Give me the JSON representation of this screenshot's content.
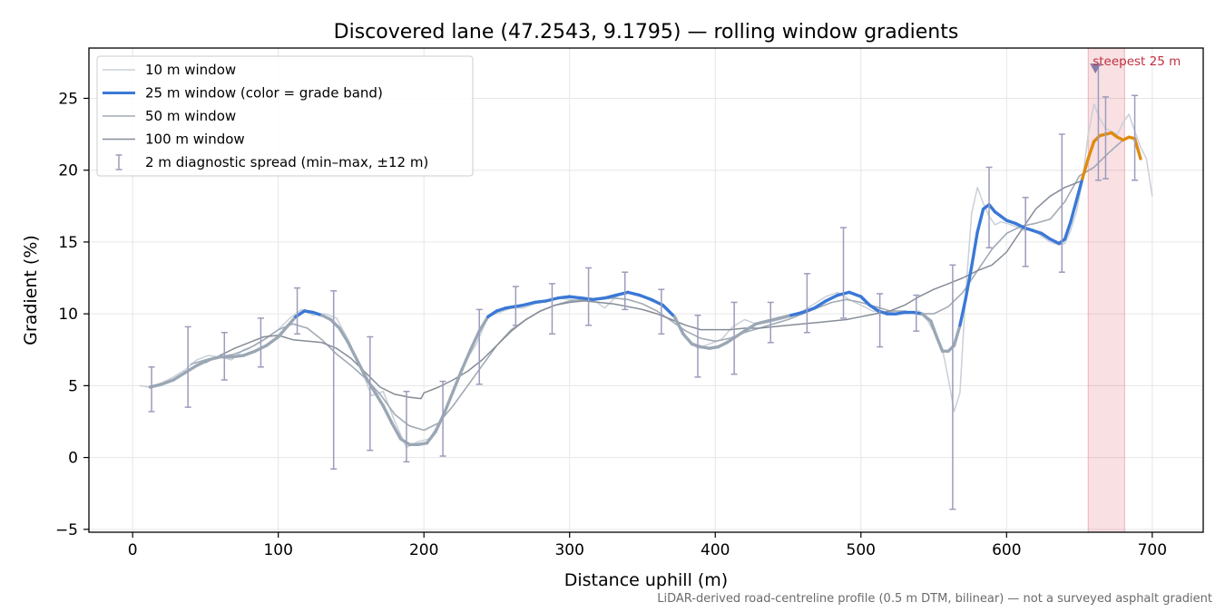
{
  "chart_data": {
    "type": "line",
    "title": "Discovered lane (47.2543, 9.1795) — rolling window gradients",
    "xlabel": "Distance uphill (m)",
    "ylabel": "Gradient (%)",
    "xlim": [
      -30,
      735
    ],
    "ylim": [
      -5.2,
      28.5
    ],
    "xticks": [
      0,
      100,
      200,
      300,
      400,
      500,
      600,
      700
    ],
    "yticks": [
      -5,
      0,
      5,
      10,
      15,
      20,
      25
    ],
    "xtick_labels": [
      "0",
      "100",
      "200",
      "300",
      "400",
      "500",
      "600",
      "700"
    ],
    "ytick_labels": [
      "−5",
      "0",
      "5",
      "10",
      "15",
      "20",
      "25"
    ],
    "grid": true,
    "legend_position": "top-left",
    "footnote": "LiDAR-derived road-centreline profile (0.5 m DTM, bilinear) — not a surveyed asphalt gradient",
    "annotation": {
      "text": "steepest 25 m",
      "x": 661,
      "y": 27.1
    },
    "highlight_span": {
      "x0": 656,
      "x1": 681,
      "color": "#d6404f"
    },
    "colors": {
      "band_low": "#9aa7b4",
      "band_mid": "#3a78d6",
      "band_high": "#e08a10",
      "w10": "#c9d0d8",
      "w50": "#a2aab4",
      "w100": "#858c97",
      "errorbar": "#9c9cbc",
      "marker": "#8a7aa8",
      "annotation": "#c0303f"
    },
    "band_thresholds": [
      10,
      20
    ],
    "legend": [
      {
        "label": "10 m window",
        "kind": "line",
        "color": "#c9d0d8",
        "width": 1.5
      },
      {
        "label": "25 m window (color = grade band)",
        "kind": "line",
        "color": "#3a78d6",
        "width": 3
      },
      {
        "label": "50 m window",
        "kind": "line",
        "color": "#a2aab4",
        "width": 1.5
      },
      {
        "label": "100 m window",
        "kind": "line",
        "color": "#858c97",
        "width": 1.5
      },
      {
        "label": "2 m diagnostic spread (min–max, ±12 m)",
        "kind": "errorbar",
        "color": "#9c9cbc"
      }
    ],
    "series": [
      {
        "name": "10 m window",
        "x": [
          5,
          12,
          20,
          28,
          36,
          44,
          52,
          60,
          68,
          76,
          84,
          92,
          100,
          108,
          116,
          124,
          132,
          140,
          148,
          156,
          164,
          172,
          180,
          188,
          196,
          204,
          212,
          220,
          228,
          236,
          244,
          252,
          260,
          268,
          276,
          284,
          292,
          300,
          308,
          316,
          324,
          332,
          340,
          348,
          356,
          364,
          372,
          380,
          388,
          396,
          404,
          412,
          420,
          428,
          436,
          444,
          452,
          460,
          468,
          476,
          484,
          492,
          500,
          508,
          516,
          524,
          532,
          540,
          546,
          552,
          556,
          560,
          564,
          568,
          572,
          576,
          580,
          584,
          588,
          592,
          596,
          600,
          606,
          612,
          618,
          624,
          630,
          636,
          640,
          644,
          648,
          652,
          656,
          660,
          664,
          668,
          672,
          676,
          680,
          684,
          688,
          692,
          696,
          700
        ],
        "y": [
          5.0,
          4.9,
          5.2,
          5.6,
          6.1,
          6.8,
          7.1,
          7.0,
          6.8,
          7.5,
          7.8,
          8.3,
          8.9,
          9.7,
          10.3,
          9.9,
          10.0,
          9.7,
          8.2,
          6.4,
          4.3,
          4.6,
          2.5,
          0.7,
          1.1,
          1.3,
          2.7,
          4.5,
          6.6,
          7.9,
          9.8,
          10.1,
          10.4,
          10.4,
          10.7,
          10.9,
          11.1,
          11.0,
          10.9,
          11.0,
          10.4,
          11.2,
          11.5,
          11.3,
          10.9,
          10.7,
          9.8,
          8.3,
          7.6,
          7.9,
          8.2,
          9.1,
          9.6,
          9.3,
          9.4,
          9.6,
          9.8,
          10.2,
          10.7,
          11.2,
          11.5,
          11.0,
          10.6,
          10.2,
          10.1,
          10.2,
          10.0,
          10.2,
          9.5,
          8.4,
          7.5,
          5.5,
          3.2,
          4.5,
          11.5,
          17.0,
          18.8,
          17.7,
          16.8,
          16.2,
          16.4,
          16.3,
          16.1,
          15.8,
          15.9,
          15.4,
          15.0,
          14.8,
          14.9,
          15.8,
          17.1,
          19.2,
          22.5,
          24.6,
          23.6,
          22.9,
          22.7,
          22.5,
          23.3,
          23.9,
          22.7,
          21.6,
          20.8,
          18.2
        ]
      },
      {
        "name": "25 m window (color = grade band)",
        "x": [
          12,
          20,
          28,
          36,
          44,
          52,
          60,
          68,
          76,
          84,
          92,
          100,
          106,
          112,
          118,
          124,
          130,
          136,
          142,
          148,
          154,
          160,
          166,
          172,
          178,
          184,
          190,
          196,
          202,
          208,
          214,
          220,
          226,
          232,
          238,
          244,
          250,
          256,
          262,
          268,
          276,
          284,
          292,
          300,
          308,
          316,
          324,
          332,
          340,
          348,
          356,
          364,
          372,
          378,
          384,
          390,
          396,
          402,
          408,
          414,
          420,
          428,
          436,
          444,
          452,
          460,
          468,
          476,
          484,
          492,
          500,
          506,
          512,
          518,
          524,
          530,
          536,
          542,
          548,
          552,
          556,
          560,
          564,
          568,
          572,
          576,
          580,
          584,
          588,
          592,
          596,
          600,
          606,
          612,
          618,
          624,
          630,
          636,
          640,
          644,
          648,
          652,
          656,
          660,
          664,
          668,
          672,
          676,
          680,
          684,
          688,
          692
        ],
        "y": [
          4.9,
          5.1,
          5.4,
          5.9,
          6.4,
          6.8,
          7.0,
          7.0,
          7.1,
          7.4,
          7.8,
          8.4,
          9.1,
          9.8,
          10.2,
          10.1,
          9.9,
          9.6,
          9.0,
          8.0,
          6.8,
          5.6,
          4.6,
          3.6,
          2.4,
          1.3,
          0.9,
          0.9,
          1.0,
          1.8,
          3.1,
          4.6,
          6.1,
          7.5,
          8.8,
          9.8,
          10.2,
          10.4,
          10.5,
          10.6,
          10.8,
          10.9,
          11.1,
          11.2,
          11.1,
          11.0,
          11.1,
          11.3,
          11.5,
          11.3,
          11.0,
          10.6,
          9.8,
          8.6,
          7.9,
          7.7,
          7.6,
          7.7,
          8.0,
          8.4,
          8.8,
          9.3,
          9.5,
          9.7,
          9.9,
          10.1,
          10.4,
          10.9,
          11.3,
          11.5,
          11.2,
          10.6,
          10.2,
          10.0,
          10.0,
          10.1,
          10.1,
          10.0,
          9.5,
          8.4,
          7.4,
          7.4,
          7.8,
          9.2,
          11.1,
          13.3,
          15.7,
          17.3,
          17.6,
          17.1,
          16.8,
          16.5,
          16.3,
          16.0,
          15.8,
          15.6,
          15.2,
          14.9,
          15.2,
          16.4,
          17.9,
          19.4,
          20.8,
          22.0,
          22.4,
          22.5,
          22.6,
          22.3,
          22.1,
          22.3,
          22.2,
          20.8
        ]
      },
      {
        "name": "50 m window",
        "x": [
          40,
          50,
          60,
          70,
          80,
          90,
          100,
          110,
          120,
          130,
          140,
          150,
          160,
          170,
          180,
          190,
          200,
          210,
          220,
          230,
          240,
          250,
          260,
          270,
          280,
          290,
          300,
          310,
          320,
          330,
          340,
          350,
          360,
          370,
          380,
          390,
          400,
          410,
          420,
          430,
          440,
          450,
          460,
          470,
          480,
          490,
          500,
          510,
          520,
          530,
          540,
          550,
          560,
          570,
          580,
          590,
          600,
          610,
          620,
          630,
          640,
          650,
          660,
          670,
          680
        ],
        "y": [
          6.5,
          6.8,
          7.0,
          7.2,
          7.6,
          8.2,
          8.9,
          9.3,
          9.0,
          8.2,
          7.2,
          6.4,
          5.5,
          4.4,
          3.0,
          2.2,
          1.9,
          2.4,
          3.6,
          5.0,
          6.4,
          7.8,
          8.9,
          9.6,
          10.2,
          10.6,
          10.9,
          11.0,
          11.0,
          11.1,
          11.0,
          10.7,
          10.2,
          9.5,
          8.8,
          8.3,
          8.1,
          8.3,
          8.7,
          9.0,
          9.3,
          9.6,
          10.0,
          10.4,
          10.8,
          11.0,
          10.8,
          10.5,
          10.2,
          10.2,
          10.0,
          10.0,
          10.5,
          11.5,
          13.0,
          14.5,
          15.6,
          16.1,
          16.3,
          16.6,
          17.8,
          19.6,
          20.2,
          21.2,
          22.1
        ]
      },
      {
        "name": "100 m window",
        "x": [
          50,
          60,
          70,
          80,
          90,
          100,
          110,
          120,
          130,
          140,
          150,
          160,
          170,
          180,
          190,
          198,
          200,
          210,
          220,
          230,
          240,
          250,
          260,
          270,
          280,
          290,
          300,
          310,
          320,
          330,
          340,
          350,
          360,
          370,
          380,
          390,
          400,
          410,
          420,
          430,
          440,
          450,
          460,
          470,
          480,
          490,
          500,
          510,
          520,
          530,
          540,
          550,
          560,
          570,
          580,
          590,
          600,
          610,
          620,
          630,
          640,
          650
        ],
        "y": [
          6.6,
          7.1,
          7.6,
          8.0,
          8.4,
          8.5,
          8.2,
          8.1,
          8.0,
          7.6,
          6.9,
          5.9,
          4.9,
          4.4,
          4.2,
          4.1,
          4.5,
          4.9,
          5.4,
          6.0,
          6.8,
          7.8,
          8.8,
          9.6,
          10.2,
          10.6,
          10.8,
          10.9,
          10.8,
          10.7,
          10.5,
          10.3,
          10.0,
          9.6,
          9.2,
          8.9,
          8.9,
          8.9,
          9.0,
          9.0,
          9.1,
          9.2,
          9.3,
          9.4,
          9.5,
          9.6,
          9.8,
          10.0,
          10.2,
          10.6,
          11.2,
          11.7,
          12.1,
          12.5,
          13.0,
          13.4,
          14.3,
          15.8,
          17.3,
          18.2,
          18.8,
          19.2
        ]
      }
    ],
    "errorbars": [
      {
        "x": 13,
        "y": 5.0,
        "min": 3.2,
        "max": 6.3
      },
      {
        "x": 38,
        "y": 6.4,
        "min": 3.5,
        "max": 9.1
      },
      {
        "x": 63,
        "y": 7.0,
        "min": 5.4,
        "max": 8.7
      },
      {
        "x": 88,
        "y": 8.2,
        "min": 6.3,
        "max": 9.7
      },
      {
        "x": 113,
        "y": 10.0,
        "min": 8.6,
        "max": 11.8
      },
      {
        "x": 138,
        "y": 9.6,
        "min": -0.8,
        "max": 11.6
      },
      {
        "x": 163,
        "y": 5.0,
        "min": 0.5,
        "max": 8.4
      },
      {
        "x": 188,
        "y": 0.9,
        "min": -0.3,
        "max": 4.6
      },
      {
        "x": 213,
        "y": 3.0,
        "min": 0.1,
        "max": 5.3
      },
      {
        "x": 238,
        "y": 8.6,
        "min": 5.1,
        "max": 10.3
      },
      {
        "x": 263,
        "y": 10.6,
        "min": 9.2,
        "max": 11.9
      },
      {
        "x": 288,
        "y": 11.0,
        "min": 8.6,
        "max": 12.1
      },
      {
        "x": 313,
        "y": 11.1,
        "min": 9.2,
        "max": 13.2
      },
      {
        "x": 338,
        "y": 11.4,
        "min": 10.3,
        "max": 12.9
      },
      {
        "x": 363,
        "y": 10.7,
        "min": 8.6,
        "max": 11.7
      },
      {
        "x": 388,
        "y": 7.8,
        "min": 5.6,
        "max": 9.9
      },
      {
        "x": 413,
        "y": 8.4,
        "min": 5.8,
        "max": 10.8
      },
      {
        "x": 438,
        "y": 9.6,
        "min": 8.0,
        "max": 10.8
      },
      {
        "x": 463,
        "y": 10.7,
        "min": 8.7,
        "max": 12.8
      },
      {
        "x": 488,
        "y": 11.4,
        "min": 9.7,
        "max": 16.0
      },
      {
        "x": 513,
        "y": 10.3,
        "min": 7.7,
        "max": 11.4
      },
      {
        "x": 538,
        "y": 10.0,
        "min": 8.8,
        "max": 11.3
      },
      {
        "x": 563,
        "y": 7.5,
        "min": -3.6,
        "max": 13.4
      },
      {
        "x": 588,
        "y": 17.5,
        "min": 14.6,
        "max": 20.2
      },
      {
        "x": 613,
        "y": 16.2,
        "min": 13.3,
        "max": 18.1
      },
      {
        "x": 638,
        "y": 15.0,
        "min": 12.9,
        "max": 22.5
      },
      {
        "x": 663,
        "y": 22.3,
        "min": 19.3,
        "max": 27.3
      },
      {
        "x": 668,
        "y": 22.4,
        "min": 19.4,
        "max": 25.1
      },
      {
        "x": 688,
        "y": 22.3,
        "min": 19.3,
        "max": 25.2
      }
    ]
  }
}
